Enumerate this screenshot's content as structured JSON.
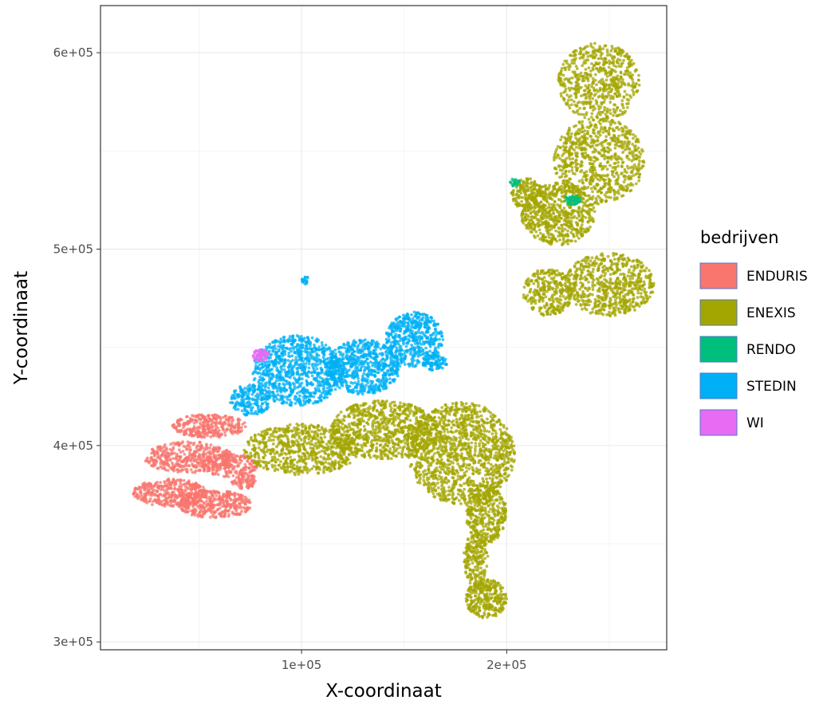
{
  "chart_data": {
    "type": "scatter",
    "title": "",
    "xlabel": "X-coordinaat",
    "ylabel": "Y-coordinaat",
    "xlim": [
      2000,
      278000
    ],
    "ylim": [
      296000,
      624000
    ],
    "x_ticks": [
      {
        "value": 100000,
        "label": "1e+05"
      },
      {
        "value": 200000,
        "label": "2e+05"
      }
    ],
    "y_ticks": [
      {
        "value": 300000,
        "label": "3e+05"
      },
      {
        "value": 400000,
        "label": "4e+05"
      },
      {
        "value": 500000,
        "label": "5e+05"
      },
      {
        "value": 600000,
        "label": "6e+05"
      }
    ],
    "x_minor": [
      50000,
      150000,
      250000
    ],
    "y_minor": [
      350000,
      450000,
      550000
    ],
    "grid": true,
    "legend": {
      "title": "bedrijven",
      "position": "right"
    },
    "series": [
      {
        "name": "ENDURIS",
        "color": "#F8766D",
        "regions": [
          {
            "cx": 55000,
            "cy": 410000,
            "rx": 18000,
            "ry": 6000,
            "n": 320
          },
          {
            "cx": 45000,
            "cy": 394000,
            "rx": 22000,
            "ry": 8000,
            "n": 420
          },
          {
            "cx": 65000,
            "cy": 390000,
            "rx": 14000,
            "ry": 6000,
            "n": 200
          },
          {
            "cx": 36000,
            "cy": 376000,
            "rx": 18000,
            "ry": 7000,
            "n": 380
          },
          {
            "cx": 58000,
            "cy": 370000,
            "rx": 18000,
            "ry": 7000,
            "n": 380
          },
          {
            "cx": 72000,
            "cy": 382000,
            "rx": 6000,
            "ry": 4000,
            "n": 80
          }
        ]
      },
      {
        "name": "ENEXIS",
        "color": "#A3A500",
        "regions": [
          {
            "cx": 100000,
            "cy": 398000,
            "rx": 28000,
            "ry": 13000,
            "n": 700
          },
          {
            "cx": 140000,
            "cy": 408000,
            "rx": 26000,
            "ry": 15000,
            "n": 800
          },
          {
            "cx": 178000,
            "cy": 396000,
            "rx": 26000,
            "ry": 26000,
            "n": 1300
          },
          {
            "cx": 190000,
            "cy": 365000,
            "rx": 10000,
            "ry": 15000,
            "n": 350
          },
          {
            "cx": 185000,
            "cy": 342000,
            "rx": 6000,
            "ry": 14000,
            "n": 200
          },
          {
            "cx": 190000,
            "cy": 322000,
            "rx": 10000,
            "ry": 10000,
            "n": 300
          },
          {
            "cx": 225000,
            "cy": 518000,
            "rx": 18000,
            "ry": 16000,
            "n": 650
          },
          {
            "cx": 250000,
            "cy": 482000,
            "rx": 22000,
            "ry": 16000,
            "n": 650
          },
          {
            "cx": 220000,
            "cy": 478000,
            "rx": 12000,
            "ry": 12000,
            "n": 300
          },
          {
            "cx": 245000,
            "cy": 545000,
            "rx": 22000,
            "ry": 22000,
            "n": 750
          },
          {
            "cx": 245000,
            "cy": 585000,
            "rx": 20000,
            "ry": 20000,
            "n": 600
          },
          {
            "cx": 210000,
            "cy": 528000,
            "rx": 8000,
            "ry": 8000,
            "n": 150
          }
        ]
      },
      {
        "name": "RENDO",
        "color": "#00BF7D",
        "regions": [
          {
            "cx": 232000,
            "cy": 525000,
            "rx": 4000,
            "ry": 2500,
            "n": 60
          },
          {
            "cx": 204000,
            "cy": 534000,
            "rx": 2500,
            "ry": 2000,
            "n": 25
          }
        ]
      },
      {
        "name": "STEDIN",
        "color": "#00B0F6",
        "regions": [
          {
            "cx": 98000,
            "cy": 438000,
            "rx": 22000,
            "ry": 18000,
            "n": 900
          },
          {
            "cx": 130000,
            "cy": 440000,
            "rx": 18000,
            "ry": 14000,
            "n": 650
          },
          {
            "cx": 155000,
            "cy": 454000,
            "rx": 14000,
            "ry": 14000,
            "n": 500
          },
          {
            "cx": 165000,
            "cy": 442000,
            "rx": 6000,
            "ry": 4000,
            "n": 80
          },
          {
            "cx": 75000,
            "cy": 423000,
            "rx": 10000,
            "ry": 8000,
            "n": 200
          },
          {
            "cx": 102000,
            "cy": 484000,
            "rx": 2000,
            "ry": 2000,
            "n": 20
          }
        ]
      },
      {
        "name": "WI",
        "color": "#E76BF3",
        "regions": [
          {
            "cx": 80000,
            "cy": 446000,
            "rx": 4000,
            "ry": 3000,
            "n": 60
          }
        ]
      }
    ]
  },
  "legend_swatch_colors": [
    "#F8766D",
    "#A3A500",
    "#00BF7D",
    "#00B0F6",
    "#E76BF3"
  ]
}
